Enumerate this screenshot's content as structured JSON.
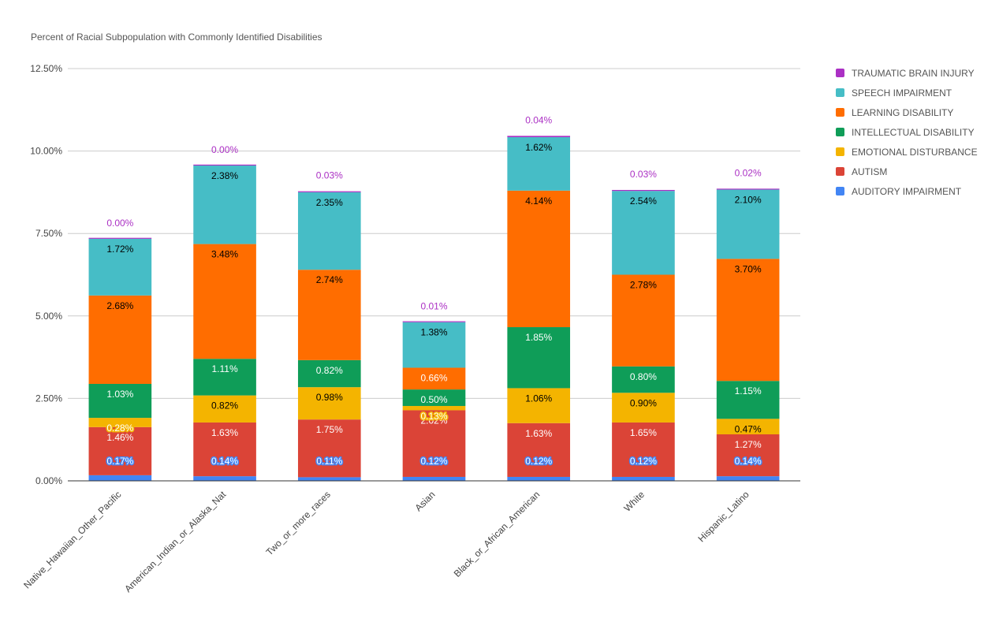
{
  "chart_data": {
    "type": "bar",
    "stacked": true,
    "title": "Percent of Racial Subpopulation with Commonly Identified Disabilities",
    "xlabel": "",
    "ylabel": "",
    "ylim": [
      0,
      12.5
    ],
    "y_ticks": [
      "0.00%",
      "2.50%",
      "5.00%",
      "7.50%",
      "10.00%",
      "12.50%"
    ],
    "y_tick_values": [
      0,
      2.5,
      5,
      7.5,
      10,
      12.5
    ],
    "grid": true,
    "legend_position": "right",
    "categories": [
      "Native_Hawaiian_Other_Pacific",
      "American_Indian_or_Alaska_Nat",
      "Two_or_more_races",
      "Asian",
      "Black_or_African_American",
      "White",
      "Hispanic_Latino"
    ],
    "series": [
      {
        "name": "AUDITORY IMPAIRMENT",
        "color": "#4285f4",
        "label_color": "#ffffff",
        "label_outline": true,
        "values": [
          0.17,
          0.14,
          0.11,
          0.12,
          0.12,
          0.12,
          0.14
        ],
        "labels": [
          "0.17%",
          "0.14%",
          "0.11%",
          "0.12%",
          "0.12%",
          "0.12%",
          "0.14%"
        ]
      },
      {
        "name": "AUTISM",
        "color": "#db4437",
        "label_color": "#ffffff",
        "label_outline": false,
        "values": [
          1.46,
          1.63,
          1.75,
          2.02,
          1.63,
          1.65,
          1.27
        ],
        "labels": [
          "1.46%",
          "1.63%",
          "1.75%",
          "2.02%",
          "1.63%",
          "1.65%",
          "1.27%"
        ]
      },
      {
        "name": "EMOTIONAL DISTURBANCE",
        "color": "#f4b400",
        "label_color": "#000000",
        "label_outline": false,
        "values": [
          0.28,
          0.82,
          0.98,
          0.13,
          1.06,
          0.9,
          0.47
        ],
        "labels": [
          "0.28%",
          "0.82%",
          "0.98%",
          "0.13%",
          "1.06%",
          "0.90%",
          "0.47%"
        ],
        "outline_labels": [
          0,
          3
        ]
      },
      {
        "name": "INTELLECTUAL DISABILITY",
        "color": "#0f9d58",
        "label_color": "#ffffff",
        "label_outline": false,
        "values": [
          1.03,
          1.11,
          0.82,
          0.5,
          1.85,
          0.8,
          1.15
        ],
        "labels": [
          "1.03%",
          "1.11%",
          "0.82%",
          "0.50%",
          "1.85%",
          "0.80%",
          "1.15%"
        ],
        "outline_labels": [
          0,
          3
        ]
      },
      {
        "name": "LEARNING DISABILITY",
        "color": "#ff6d00",
        "label_color": "#000000",
        "label_outline": false,
        "values": [
          2.68,
          3.48,
          2.74,
          0.66,
          4.14,
          2.78,
          3.7
        ],
        "labels": [
          "2.68%",
          "3.48%",
          "2.74%",
          "0.66%",
          "4.14%",
          "2.78%",
          "3.70%"
        ],
        "outline_labels": [
          3
        ]
      },
      {
        "name": "SPEECH IMPAIRMENT",
        "color": "#46bdc6",
        "label_color": "#000000",
        "label_outline": false,
        "values": [
          1.72,
          2.38,
          2.35,
          1.38,
          1.62,
          2.54,
          2.1
        ],
        "labels": [
          "1.72%",
          "2.38%",
          "2.35%",
          "1.38%",
          "1.62%",
          "2.54%",
          "2.10%"
        ]
      },
      {
        "name": "TRAUMATIC BRAIN INJURY",
        "color": "#ab30c4",
        "label_color": "#ab30c4",
        "label_outline": false,
        "values": [
          0.0,
          0.0,
          0.03,
          0.01,
          0.04,
          0.03,
          0.02
        ],
        "labels": [
          "0.00%",
          "0.00%",
          "0.03%",
          "0.01%",
          "0.04%",
          "0.03%",
          "0.02%"
        ]
      }
    ],
    "legend_order": [
      "TRAUMATIC BRAIN INJURY",
      "SPEECH IMPAIRMENT",
      "LEARNING DISABILITY",
      "INTELLECTUAL DISABILITY",
      "EMOTIONAL DISTURBANCE",
      "AUTISM",
      "AUDITORY IMPAIRMENT"
    ]
  }
}
